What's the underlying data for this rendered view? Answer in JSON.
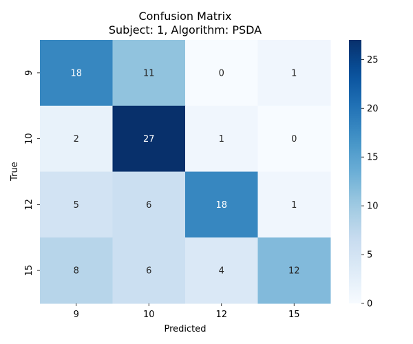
{
  "chart_data": {
    "type": "heatmap",
    "title": "Confusion Matrix",
    "subtitle": "Subject: 1, Algorithm: PSDA",
    "xlabel": "Predicted",
    "ylabel": "True",
    "x_categories": [
      "9",
      "10",
      "12",
      "15"
    ],
    "y_categories": [
      "9",
      "10",
      "12",
      "15"
    ],
    "values": [
      [
        18,
        11,
        0,
        1
      ],
      [
        2,
        27,
        1,
        0
      ],
      [
        5,
        6,
        18,
        1
      ],
      [
        8,
        6,
        4,
        12
      ]
    ],
    "colormap": "Blues",
    "color_range": [
      0,
      27
    ],
    "colorbar_ticks": [
      0,
      5,
      10,
      15,
      20,
      25
    ],
    "colorbar": true,
    "grid": false
  }
}
